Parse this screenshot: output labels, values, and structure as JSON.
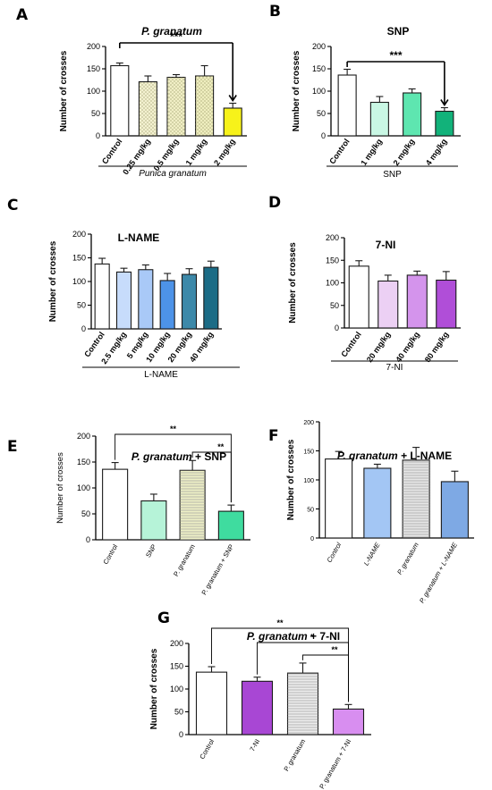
{
  "colors": {
    "axis": "#000000",
    "bar_edge": "#1a1a1a"
  },
  "chart_data": [
    {
      "panel": "A",
      "title": "P. granatum",
      "title_italic": true,
      "type": "bar",
      "ylabel": "Number of crosses",
      "ylim": [
        0,
        200
      ],
      "yticks": [
        0,
        50,
        100,
        150,
        200
      ],
      "categories": [
        "Control",
        "0.25 mg/kg",
        "0.5 mg/kg",
        "1 mg/kg",
        "2 mg/kg"
      ],
      "values": [
        157,
        121,
        131,
        134,
        62
      ],
      "errors": [
        6,
        13,
        6,
        23,
        11
      ],
      "bar_colors": [
        "#ffffff",
        "#f3f1d0",
        "#f1efc6",
        "#efeebf",
        "#f7f21a"
      ],
      "group_label": "Punica granatum",
      "group_label_italic": true,
      "significance": [
        {
          "from": 0,
          "to": 4,
          "label": "***"
        }
      ]
    },
    {
      "panel": "B",
      "title": "SNP",
      "title_italic": false,
      "type": "bar",
      "ylabel": "Number of crosses",
      "ylim": [
        0,
        200
      ],
      "yticks": [
        0,
        50,
        100,
        150,
        200
      ],
      "categories": [
        "Control",
        "1 mg/kg",
        "2 mg/kg",
        "4 mg/kg"
      ],
      "values": [
        136,
        75,
        96,
        55
      ],
      "errors": [
        13,
        13,
        9,
        8
      ],
      "bar_colors": [
        "#ffffff",
        "#c9f7e4",
        "#5ee6b0",
        "#12b27a"
      ],
      "group_label": "SNP",
      "group_label_italic": false,
      "significance": [
        {
          "from": 0,
          "to": 3,
          "label": "***"
        }
      ]
    },
    {
      "panel": "C",
      "title": "L-NAME",
      "title_italic": false,
      "type": "bar",
      "ylabel": "Number of crosses",
      "ylim": [
        0,
        200
      ],
      "yticks": [
        0,
        50,
        100,
        150,
        200
      ],
      "categories": [
        "Control",
        "2.5 mg/kg",
        "5 mg/kg",
        "10 mg/kg",
        "20 mg/kg",
        "40 mg/kg"
      ],
      "values": [
        137,
        120,
        125,
        102,
        115,
        130
      ],
      "errors": [
        12,
        8,
        10,
        15,
        12,
        13
      ],
      "bar_colors": [
        "#ffffff",
        "#c7dcfb",
        "#a9c9f7",
        "#4d93e8",
        "#3d89a9",
        "#1c6c86"
      ],
      "group_label": "L-NAME",
      "group_label_italic": false,
      "significance": []
    },
    {
      "panel": "D",
      "title": "7-NI",
      "title_italic": false,
      "type": "bar",
      "ylabel": "Number of crosses",
      "ylim": [
        0,
        200
      ],
      "yticks": [
        0,
        50,
        100,
        150,
        200
      ],
      "categories": [
        "Control",
        "20 mg/kg",
        "40 mg/kg",
        "80 mg/kg"
      ],
      "values": [
        137,
        104,
        117,
        106
      ],
      "errors": [
        12,
        13,
        9,
        19
      ],
      "bar_colors": [
        "#ffffff",
        "#ecd0f4",
        "#d494ec",
        "#b04ed8"
      ],
      "group_label": "7-NI",
      "group_label_italic": false,
      "significance": []
    },
    {
      "panel": "E",
      "title": "P. granatum + SNP",
      "title_italic": false,
      "type": "bar",
      "ylabel": "Number of crosses",
      "ylim": [
        0,
        200
      ],
      "yticks": [
        0,
        50,
        100,
        150,
        200
      ],
      "categories": [
        "Control",
        "SNP",
        "P. granatum",
        "P. granatum + SNP"
      ],
      "values": [
        136,
        75,
        134,
        55
      ],
      "errors": [
        13,
        13,
        19,
        12
      ],
      "bar_colors": [
        "#ffffff",
        "#b6f3d8",
        "#eef0c6",
        "#3fdc9f"
      ],
      "group_label": "",
      "group_label_italic": false,
      "significance": [
        {
          "from": 0,
          "to": 3,
          "label": "**"
        },
        {
          "from": 2,
          "to": 3,
          "label": "**"
        }
      ]
    },
    {
      "panel": "F",
      "title": "P. granatum + L-NAME",
      "title_italic": false,
      "type": "bar",
      "ylabel": "Number of crosses",
      "ylim": [
        0,
        200
      ],
      "yticks": [
        0,
        50,
        100,
        150,
        200
      ],
      "categories": [
        "Control",
        "L-NAME",
        "P. granatum",
        "P. granatum + L-NAME"
      ],
      "values": [
        136,
        120,
        134,
        97
      ],
      "errors": [
        13,
        7,
        22,
        18
      ],
      "bar_colors": [
        "#ffffff",
        "#a3c6f4",
        "#e6e6e6",
        "#7ea9e4"
      ],
      "group_label": "",
      "group_label_italic": false,
      "significance": []
    },
    {
      "panel": "G",
      "title": "P. granatum + 7-NI",
      "title_italic": false,
      "type": "bar",
      "ylabel": "Number of crosses",
      "ylim": [
        0,
        200
      ],
      "yticks": [
        0,
        50,
        100,
        150,
        200
      ],
      "categories": [
        "Control",
        "7-NI",
        "P. granatum",
        "P. granatum + 7-NI"
      ],
      "values": [
        137,
        117,
        135,
        56
      ],
      "errors": [
        12,
        9,
        22,
        10
      ],
      "bar_colors": [
        "#ffffff",
        "#a847d4",
        "#ececec",
        "#d88ef0"
      ],
      "group_label": "",
      "group_label_italic": false,
      "significance": [
        {
          "from": 0,
          "to": 3,
          "label": "**"
        },
        {
          "from": 1,
          "to": 3,
          "label": "*"
        },
        {
          "from": 2,
          "to": 3,
          "label": "**"
        }
      ]
    }
  ]
}
